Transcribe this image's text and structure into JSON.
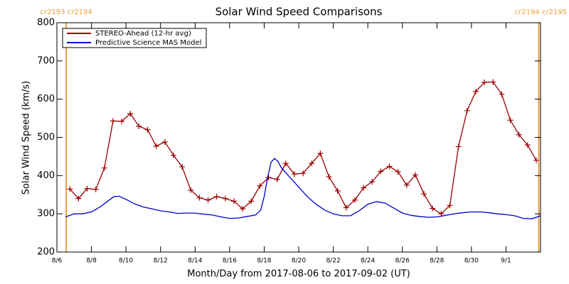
{
  "chart_data": {
    "type": "line",
    "title": "Solar Wind Speed Comparisons",
    "x_label": "Month/Day from 2017-08-06 to 2017-09-02 (UT)",
    "y_label": "Solar Wind Speed (km/s)",
    "xlim": [
      0,
      28
    ],
    "xticks": [
      {
        "value": 0,
        "label": "8/6"
      },
      {
        "value": 2,
        "label": "8/8"
      },
      {
        "value": 4,
        "label": "8/10"
      },
      {
        "value": 6,
        "label": "8/12"
      },
      {
        "value": 8,
        "label": "8/14"
      },
      {
        "value": 10,
        "label": "8/16"
      },
      {
        "value": 12,
        "label": "8/18"
      },
      {
        "value": 14,
        "label": "8/20"
      },
      {
        "value": 16,
        "label": "8/22"
      },
      {
        "value": 18,
        "label": "8/24"
      },
      {
        "value": 20,
        "label": "8/26"
      },
      {
        "value": 22,
        "label": "8/28"
      },
      {
        "value": 24,
        "label": "8/30"
      },
      {
        "value": 26,
        "label": "9/1"
      }
    ],
    "ylim": [
      200,
      800
    ],
    "yticks": [
      200,
      300,
      400,
      500,
      600,
      700,
      800
    ],
    "legend": "upper left",
    "annotations": [
      {
        "x": 0.54,
        "label": "cr2193 cr2194",
        "color": "#e8a040"
      },
      {
        "x": 27.9,
        "label": "cr2194 cr2195",
        "color": "#e8a040"
      }
    ],
    "series": [
      {
        "name": "STEREO-Ahead (12-hr avg)",
        "color": "#990000",
        "marker": "+",
        "x": [
          0.75,
          1.25,
          1.75,
          2.25,
          2.75,
          3.25,
          3.75,
          4.25,
          4.75,
          5.25,
          5.75,
          6.25,
          6.75,
          7.25,
          7.75,
          8.25,
          8.75,
          9.25,
          9.75,
          10.25,
          10.75,
          11.25,
          11.75,
          12.25,
          12.75,
          13.25,
          13.75,
          14.25,
          14.75,
          15.25,
          15.75,
          16.25,
          16.75,
          17.25,
          17.75,
          18.25,
          18.75,
          19.25,
          19.75,
          20.25,
          20.75,
          21.25,
          21.75,
          22.25,
          22.75,
          23.25,
          23.75,
          24.25,
          24.75,
          25.25,
          25.75,
          26.25,
          26.75,
          27.25,
          27.75
        ],
        "values": [
          365,
          340,
          366,
          364,
          420,
          543,
          542,
          562,
          529,
          520,
          477,
          488,
          453,
          423,
          362,
          342,
          336,
          345,
          340,
          333,
          313,
          333,
          373,
          395,
          390,
          432,
          404,
          406,
          432,
          458,
          397,
          360,
          316,
          336,
          368,
          384,
          411,
          424,
          410,
          375,
          402,
          352,
          314,
          300,
          322,
          476,
          570,
          620,
          644,
          645,
          613,
          545,
          507,
          480,
          440
        ]
      },
      {
        "name": "Predictive Science MAS Model",
        "color": "#0000cc",
        "x": [
          0.5,
          1,
          1.5,
          2,
          2.5,
          3,
          3.3,
          3.6,
          4,
          4.5,
          5,
          5.5,
          6,
          6.5,
          7,
          7.5,
          8,
          8.5,
          9,
          9.5,
          10,
          10.5,
          11,
          11.5,
          11.8,
          12,
          12.2,
          12.4,
          12.6,
          12.8,
          13,
          13.5,
          14,
          14.5,
          15,
          15.5,
          16,
          16.5,
          17,
          17.5,
          18,
          18.5,
          19,
          19.5,
          20,
          20.5,
          21,
          21.5,
          22,
          22.5,
          23,
          23.5,
          24,
          24.5,
          25,
          25.5,
          26,
          26.5,
          27,
          27.5,
          28
        ],
        "values": [
          292,
          300,
          300,
          305,
          318,
          335,
          345,
          346,
          338,
          326,
          318,
          313,
          308,
          305,
          301,
          302,
          302,
          299,
          297,
          292,
          288,
          289,
          293,
          297,
          310,
          345,
          395,
          435,
          445,
          437,
          420,
          395,
          370,
          345,
          325,
          310,
          300,
          295,
          295,
          308,
          325,
          332,
          328,
          315,
          302,
          296,
          293,
          291,
          292,
          296,
          300,
          303,
          305,
          305,
          303,
          300,
          298,
          295,
          288,
          287,
          295
        ]
      }
    ]
  }
}
